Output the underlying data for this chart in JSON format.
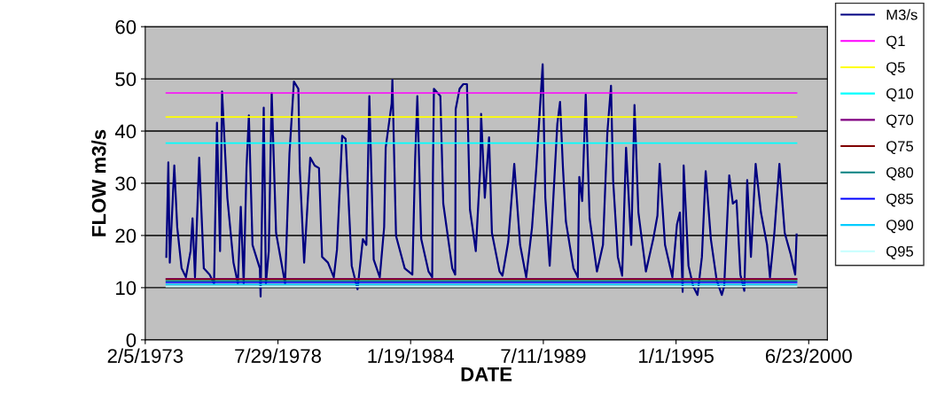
{
  "chart_data": {
    "type": "line",
    "xlabel": "DATE",
    "ylabel": "FLOW m3/s",
    "xlim": [
      "1973-02-05",
      "2001-03-31"
    ],
    "ylim": [
      0,
      60
    ],
    "yticks": [
      0,
      10,
      20,
      30,
      40,
      50,
      60
    ],
    "xticks": [
      {
        "value": "1973-02-05",
        "label": "2/5/1973"
      },
      {
        "value": "1978-07-29",
        "label": "7/29/1978"
      },
      {
        "value": "1984-01-19",
        "label": "1/19/1984"
      },
      {
        "value": "1989-07-11",
        "label": "7/11/1989"
      },
      {
        "value": "1995-01-01",
        "label": "1/1/1995"
      },
      {
        "value": "2000-06-23",
        "label": "6/23/2000"
      }
    ],
    "grid": "y",
    "legend": "right",
    "marker": "none",
    "line_style": "solid",
    "series": [
      {
        "name": "M3/s",
        "color": "#000080",
        "x": [
          "1973-12-20",
          "1974-01-19",
          "1974-02-10",
          "1974-04-19",
          "1974-06-02",
          "1974-08-07",
          "1974-10-11",
          "1974-12-20",
          "1975-01-19",
          "1975-02-25",
          "1975-04-29",
          "1975-07-08",
          "1975-10-04",
          "1975-12-09",
          "1976-01-22",
          "1976-03-09",
          "1976-04-08",
          "1976-06-27",
          "1976-09-27",
          "1976-12-02",
          "1977-01-15",
          "1977-02-28",
          "1977-04-11",
          "1977-05-17",
          "1977-07-11",
          "1977-10-29",
          "1977-11-10",
          "1977-12-27",
          "1978-01-29",
          "1978-03-13",
          "1978-04-26",
          "1978-07-01",
          "1978-11-14",
          "1979-01-19",
          "1979-03-27",
          "1979-06-02",
          "1979-06-23",
          "1979-08-28",
          "1979-11-28",
          "1980-02-03",
          "1980-04-08",
          "1980-05-25",
          "1980-08-21",
          "1980-11-17",
          "1981-01-04",
          "1981-03-23",
          "1981-05-14",
          "1981-08-14",
          "1981-11-10",
          "1982-01-29",
          "1982-03-23",
          "1982-05-07",
          "1982-07-11",
          "1982-10-11",
          "1982-12-16",
          "1983-01-08",
          "1983-04-08",
          "1983-04-19",
          "1983-06-13",
          "1983-10-22",
          "1984-02-14",
          "1984-03-27",
          "1984-04-29",
          "1984-06-27",
          "1984-10-15",
          "1984-12-09",
          "1984-12-20",
          "1985-01-04",
          "1985-04-11",
          "1985-05-25",
          "1985-10-08",
          "1985-11-21",
          "1985-11-28",
          "1986-01-26",
          "1986-03-23",
          "1986-05-17",
          "1986-07-01",
          "1986-09-27",
          "1986-12-05",
          "1986-12-16",
          "1987-02-10",
          "1987-04-15",
          "1987-05-28",
          "1987-09-20",
          "1987-11-03",
          "1988-01-29",
          "1988-04-29",
          "1988-07-26",
          "1988-10-26",
          "1989-01-22",
          "1989-03-27",
          "1989-07-01",
          "1989-08-10",
          "1989-10-15",
          "1990-02-07",
          "1990-03-20",
          "1990-05-03",
          "1990-06-16",
          "1990-10-08",
          "1990-12-13",
          "1991-01-04",
          "1991-02-17",
          "1991-04-11",
          "1991-06-09",
          "1991-09-27",
          "1991-12-27",
          "1992-03-02",
          "1992-04-26",
          "1992-05-28",
          "1992-08-07",
          "1992-10-11",
          "1992-12-09",
          "1993-02-25",
          "1993-04-15",
          "1993-06-13",
          "1993-10-04",
          "1994-01-22",
          "1994-03-27",
          "1994-04-29",
          "1994-07-19",
          "1994-11-07",
          "1995-01-15",
          "1995-02-28",
          "1995-04-11",
          "1995-04-26",
          "1995-07-08",
          "1995-09-16",
          "1995-11-21",
          "1996-01-26",
          "1996-03-23",
          "1996-06-09",
          "1996-09-05",
          "1996-11-21",
          "1996-12-27",
          "1997-03-13",
          "1997-05-07",
          "1997-07-01",
          "1997-08-28",
          "1997-10-26",
          "1997-12-09",
          "1998-02-03",
          "1998-04-15",
          "1998-07-04",
          "1998-10-04",
          "1998-11-17",
          "1999-01-22",
          "1999-04-08",
          "1999-06-27",
          "1999-09-23",
          "1999-12-02",
          "1999-12-23"
        ],
        "values": [
          15.9,
          34,
          14.8,
          33.4,
          21.6,
          13.7,
          12,
          17,
          23.3,
          12,
          34.9,
          13.7,
          12.5,
          10.8,
          41.6,
          17,
          47.6,
          27.2,
          14.8,
          10.8,
          25.5,
          10.8,
          32.9,
          43,
          18.2,
          13.7,
          8.3,
          44.5,
          10.8,
          17,
          47.3,
          20.5,
          10.8,
          35.7,
          49.5,
          48.1,
          32.9,
          14.8,
          34.9,
          33.4,
          32.9,
          15.9,
          14.8,
          12,
          17.3,
          39.1,
          38.5,
          14.2,
          9.7,
          19.3,
          18.2,
          46.7,
          15.4,
          12,
          21.6,
          36.8,
          45.3,
          49.8,
          19.9,
          13.7,
          12.5,
          34.6,
          46.7,
          19.3,
          13.1,
          12,
          31.8,
          48.1,
          46.7,
          26.1,
          13.7,
          12.5,
          44.2,
          48.1,
          49,
          49,
          25,
          17,
          33.4,
          43.3,
          27.2,
          38.8,
          20.5,
          13.1,
          12.3,
          18.8,
          33.7,
          18.2,
          12,
          21.6,
          32.9,
          52.8,
          27.2,
          14.2,
          41.4,
          45.6,
          32.9,
          22.7,
          13.7,
          12,
          31.2,
          26.6,
          47,
          23.3,
          13.1,
          18.2,
          39.7,
          48.7,
          30.6,
          15.9,
          12.3,
          36.8,
          18.2,
          45,
          24.4,
          13.1,
          19.3,
          23.8,
          33.7,
          18.2,
          12,
          22.1,
          24.4,
          9.2,
          33.4,
          14.2,
          10.3,
          8.6,
          15.9,
          32.3,
          19.3,
          11.4,
          8.6,
          10.3,
          31.5,
          26.1,
          26.7,
          12.5,
          9.4,
          30.6,
          15.9,
          33.7,
          24.4,
          18.2,
          12,
          20.5,
          33.7,
          20.5,
          16.5,
          12.5,
          20.2
        ]
      },
      {
        "name": "Q1",
        "color": "#ff00ff",
        "x": [
          "1973-12-20",
          "1999-12-23"
        ],
        "values": [
          47.3,
          47.3
        ]
      },
      {
        "name": "Q5",
        "color": "#ffff00",
        "x": [
          "1973-12-20",
          "1999-12-23"
        ],
        "values": [
          42.7,
          42.7
        ]
      },
      {
        "name": "Q10",
        "color": "#00ffff",
        "x": [
          "1973-12-20",
          "1999-12-23"
        ],
        "values": [
          37.7,
          37.7
        ]
      },
      {
        "name": "Q70",
        "color": "#800080",
        "x": [
          "1973-12-20",
          "1999-12-23"
        ],
        "values": [
          11.7,
          11.7
        ]
      },
      {
        "name": "Q75",
        "color": "#800000",
        "x": [
          "1973-12-20",
          "1999-12-23"
        ],
        "values": [
          11.6,
          11.6
        ]
      },
      {
        "name": "Q80",
        "color": "#008080",
        "x": [
          "1973-12-20",
          "1999-12-23"
        ],
        "values": [
          11.3,
          11.3
        ]
      },
      {
        "name": "Q85",
        "color": "#0000ff",
        "x": [
          "1973-12-20",
          "1999-12-23"
        ],
        "values": [
          11.0,
          11.0
        ]
      },
      {
        "name": "Q90",
        "color": "#00ccff",
        "x": [
          "1973-12-20",
          "1999-12-23"
        ],
        "values": [
          10.6,
          10.6
        ]
      },
      {
        "name": "Q95",
        "color": "#ccffff",
        "x": [
          "1973-12-20",
          "1999-12-23"
        ],
        "values": [
          10.2,
          10.2
        ]
      }
    ]
  }
}
